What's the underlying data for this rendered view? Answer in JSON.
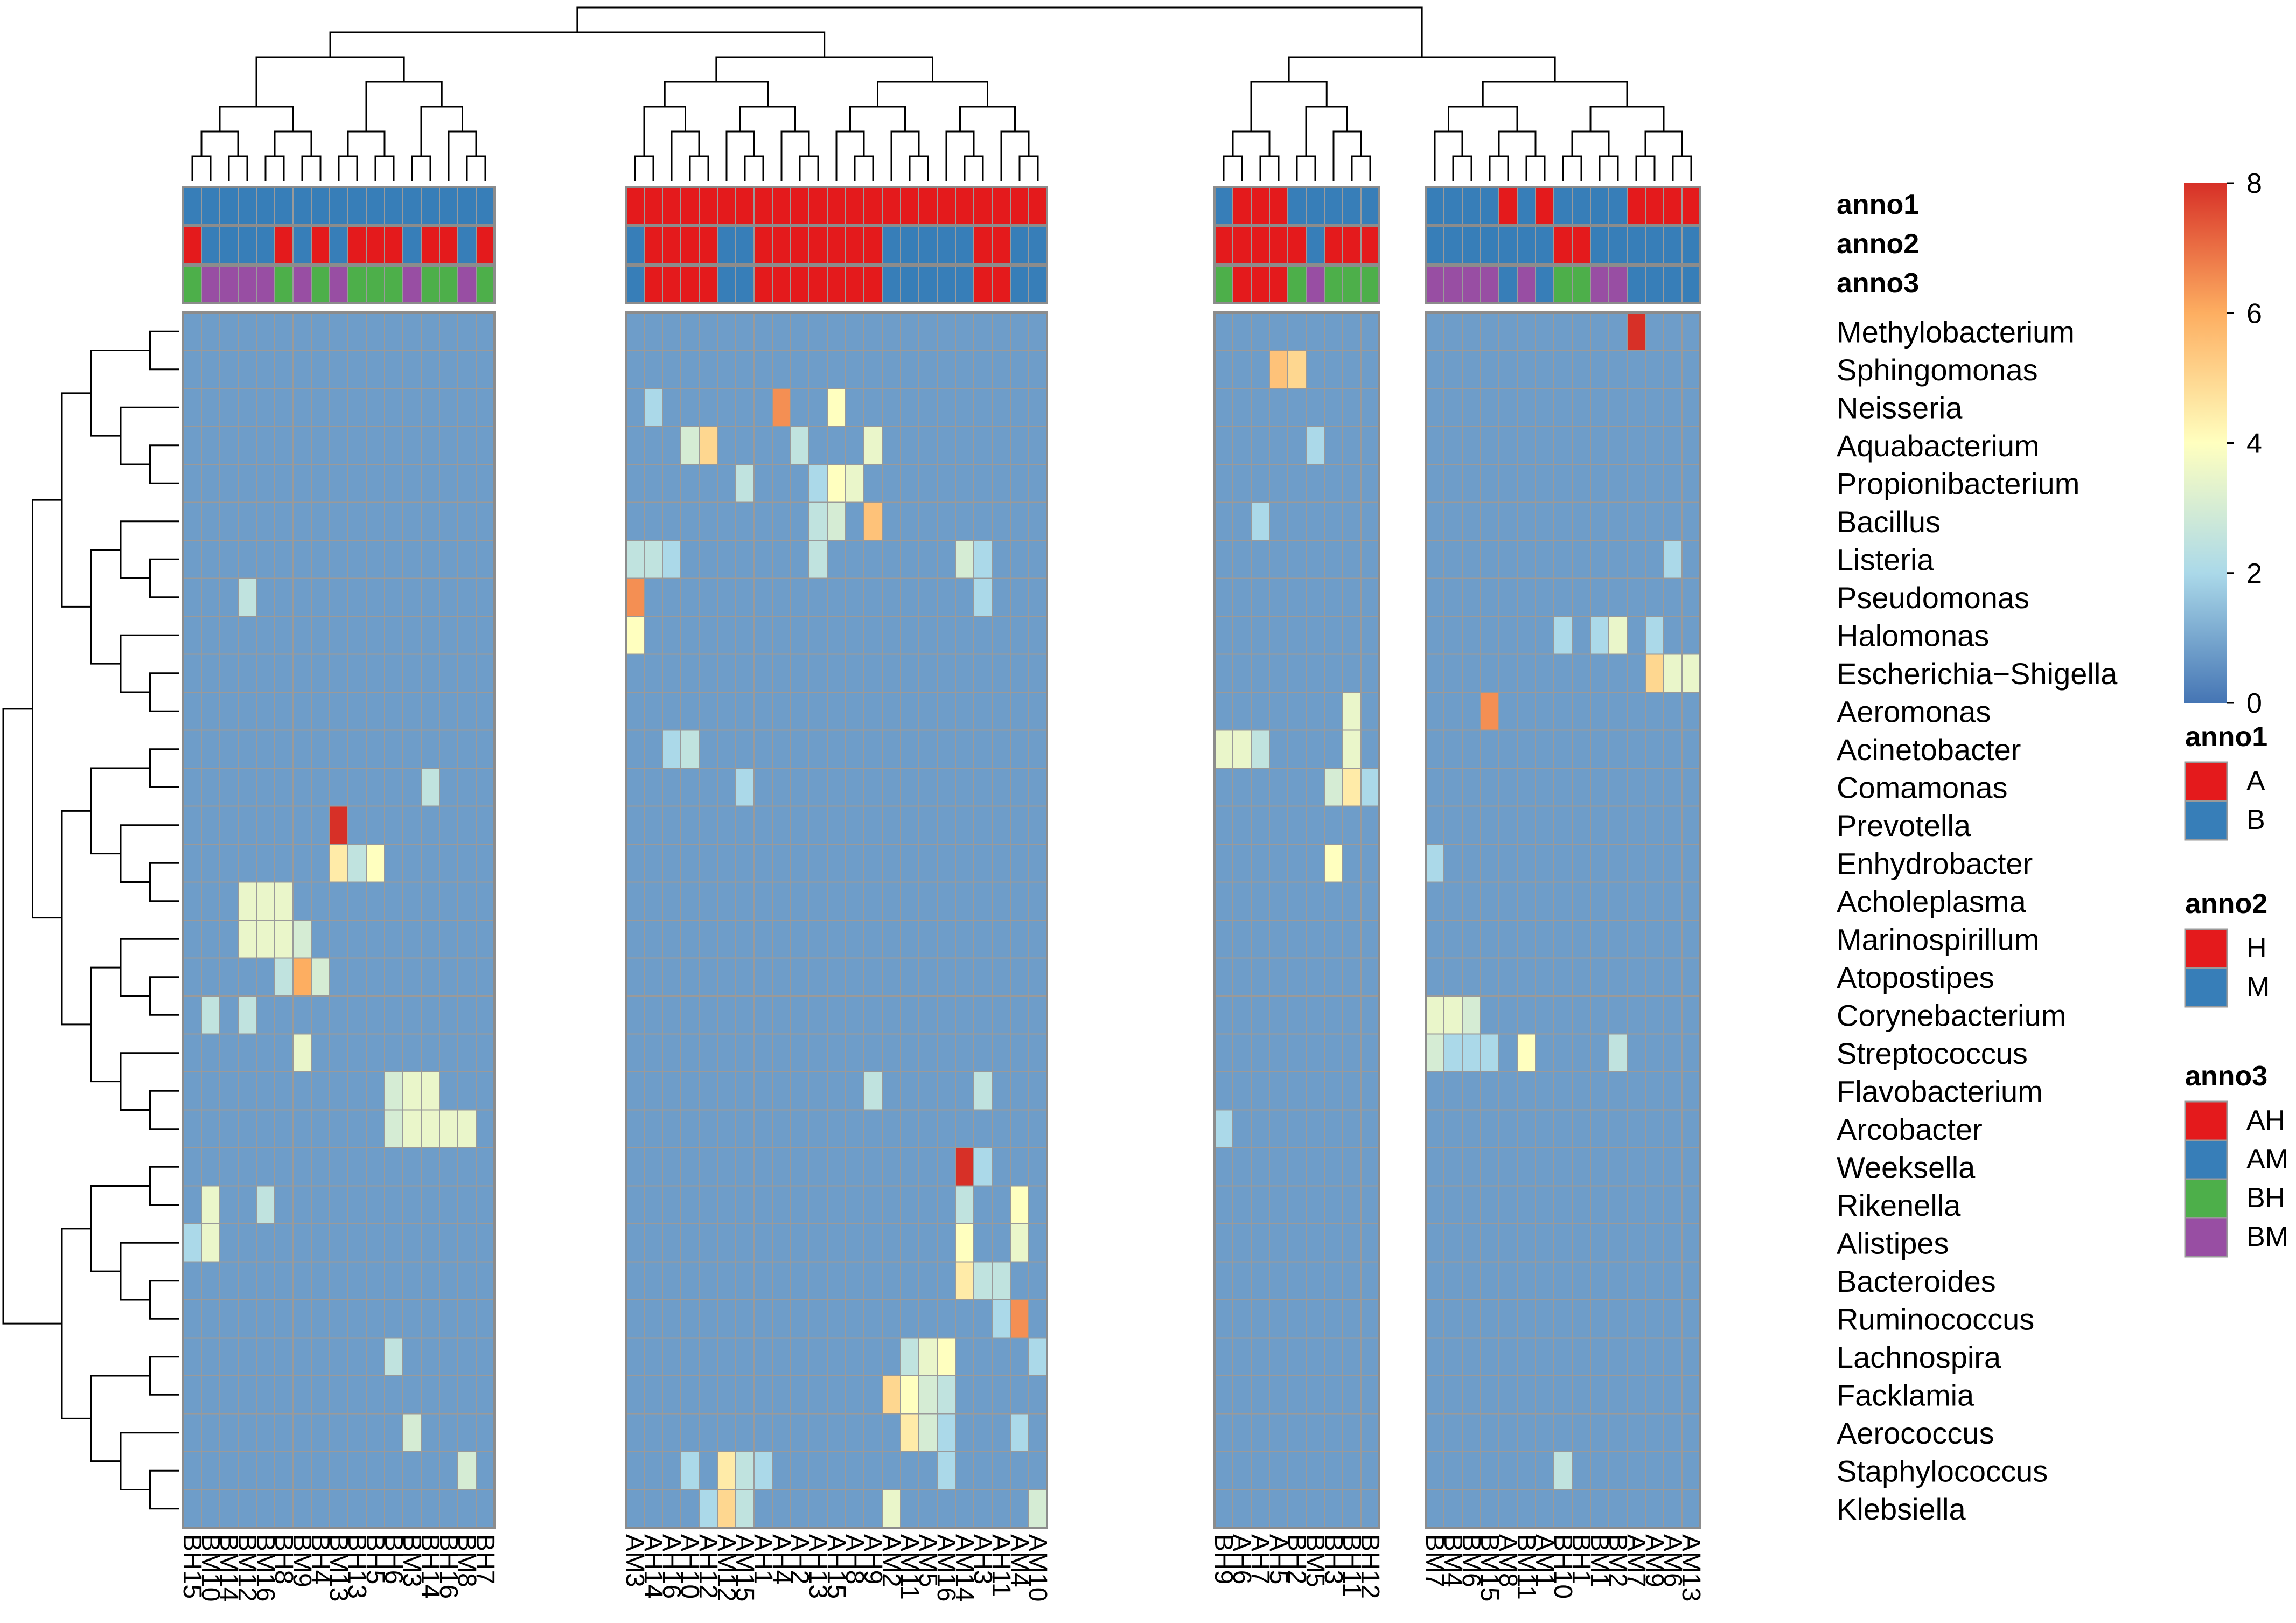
{
  "chart_data": {
    "type": "heatmap",
    "title": "",
    "xlabel": "",
    "ylabel": "",
    "color_scale": {
      "range": [
        0,
        8
      ],
      "ticks": [
        0,
        2,
        4,
        6,
        8
      ],
      "stops": [
        {
          "value": 0,
          "color": "#4575b4"
        },
        {
          "value": 2,
          "color": "#abd9e9"
        },
        {
          "value": 4,
          "color": "#ffffbf"
        },
        {
          "value": 6,
          "color": "#fdae61"
        },
        {
          "value": 8,
          "color": "#d73027"
        }
      ]
    },
    "column_groups": [
      [
        "BH15",
        "BM10",
        "BM14",
        "BM12",
        "BM16",
        "BH8",
        "BM9",
        "BH4",
        "BM13",
        "BH13",
        "BH5",
        "BH6",
        "BM3",
        "BH14",
        "BH16",
        "BM8",
        "BH7"
      ],
      [
        "AM3",
        "AH14",
        "AH16",
        "AH10",
        "AH12",
        "AM12",
        "AM15",
        "AH1",
        "AH4",
        "AH2",
        "AH13",
        "AH15",
        "AH8",
        "AH9",
        "AM2",
        "AM11",
        "AM5",
        "AM16",
        "AM14",
        "AH3",
        "AH11",
        "AM4",
        "AM10"
      ],
      [
        "BH9",
        "AH6",
        "AH7",
        "AH5",
        "BH2",
        "BM5",
        "BH3",
        "BH11",
        "BH12"
      ],
      [
        "BM7",
        "BM4",
        "BM6",
        "BM15",
        "AM8",
        "BM11",
        "AM1",
        "BH10",
        "BH1",
        "BM1",
        "BM2",
        "AM7",
        "AM9",
        "AM6",
        "AM13"
      ]
    ],
    "columns": [
      "BH15",
      "BM10",
      "BM14",
      "BM12",
      "BM16",
      "BH8",
      "BM9",
      "BH4",
      "BM13",
      "BH13",
      "BH5",
      "BH6",
      "BM3",
      "BH14",
      "BH16",
      "BM8",
      "BH7",
      "AM3",
      "AH14",
      "AH16",
      "AH10",
      "AH12",
      "AM12",
      "AM15",
      "AH1",
      "AH4",
      "AH2",
      "AH13",
      "AH15",
      "AH8",
      "AH9",
      "AM2",
      "AM11",
      "AM5",
      "AM16",
      "AM14",
      "AH3",
      "AH11",
      "AM4",
      "AM10",
      "BH9",
      "AH6",
      "AH7",
      "AH5",
      "BH2",
      "BM5",
      "BH3",
      "BH11",
      "BH12",
      "BM7",
      "BM4",
      "BM6",
      "BM15",
      "AM8",
      "BM11",
      "AM1",
      "BH10",
      "BH1",
      "BM1",
      "BM2",
      "AM7",
      "AM9",
      "AM6",
      "AM13"
    ],
    "rows": [
      "Methylobacterium",
      "Sphingomonas",
      "Neisseria",
      "Aquabacterium",
      "Propionibacterium",
      "Bacillus",
      "Listeria",
      "Pseudomonas",
      "Halomonas",
      "Escherichia−Shigella",
      "Aeromonas",
      "Acinetobacter",
      "Comamonas",
      "Prevotella",
      "Enhydrobacter",
      "Acholeplasma",
      "Marinospirillum",
      "Atopostipes",
      "Corynebacterium",
      "Streptococcus",
      "Flavobacterium",
      "Arcobacter",
      "Weeksella",
      "Rikenella",
      "Alistipes",
      "Bacteroides",
      "Ruminococcus",
      "Lachnospira",
      "Facklamia",
      "Aerococcus",
      "Staphylococcus",
      "Klebsiella"
    ],
    "default_value": 0.8,
    "cells": [
      {
        "row": "Methylobacterium",
        "col": "AM7",
        "value": 8
      },
      {
        "row": "Sphingomonas",
        "col": "AH5",
        "value": 5.5
      },
      {
        "row": "Sphingomonas",
        "col": "BH2",
        "value": 5
      },
      {
        "row": "Neisseria",
        "col": "AH4",
        "value": 6.5
      },
      {
        "row": "Neisseria",
        "col": "AH15",
        "value": 4
      },
      {
        "row": "Neisseria",
        "col": "AH14",
        "value": 2
      },
      {
        "row": "Aquabacterium",
        "col": "AH12",
        "value": 5
      },
      {
        "row": "Aquabacterium",
        "col": "AH10",
        "value": 3
      },
      {
        "row": "Aquabacterium",
        "col": "AH2",
        "value": 2.5
      },
      {
        "row": "Aquabacterium",
        "col": "AH9",
        "value": 3.5
      },
      {
        "row": "Aquabacterium",
        "col": "BM5",
        "value": 2
      },
      {
        "row": "Propionibacterium",
        "col": "AH15",
        "value": 4
      },
      {
        "row": "Propionibacterium",
        "col": "AH8",
        "value": 3.5
      },
      {
        "row": "Propionibacterium",
        "col": "AM15",
        "value": 2.5
      },
      {
        "row": "Propionibacterium",
        "col": "AH13",
        "value": 2
      },
      {
        "row": "Bacillus",
        "col": "AH9",
        "value": 5.5
      },
      {
        "row": "Bacillus",
        "col": "AH15",
        "value": 3
      },
      {
        "row": "Bacillus",
        "col": "AH13",
        "value": 2.5
      },
      {
        "row": "Bacillus",
        "col": "AH7",
        "value": 2
      },
      {
        "row": "Listeria",
        "col": "AM3",
        "value": 2.5
      },
      {
        "row": "Listeria",
        "col": "AH14",
        "value": 2.5
      },
      {
        "row": "Listeria",
        "col": "AH16",
        "value": 2
      },
      {
        "row": "Listeria",
        "col": "AH13",
        "value": 2.5
      },
      {
        "row": "Listeria",
        "col": "AM14",
        "value": 3
      },
      {
        "row": "Listeria",
        "col": "AH3",
        "value": 2
      },
      {
        "row": "Listeria",
        "col": "AM6",
        "value": 2
      },
      {
        "row": "Pseudomonas",
        "col": "AM3",
        "value": 6.5
      },
      {
        "row": "Pseudomonas",
        "col": "BM12",
        "value": 2.5
      },
      {
        "row": "Pseudomonas",
        "col": "AH3",
        "value": 2
      },
      {
        "row": "Halomonas",
        "col": "AM3",
        "value": 4
      },
      {
        "row": "Halomonas",
        "col": "BM1",
        "value": 2
      },
      {
        "row": "Halomonas",
        "col": "BM2",
        "value": 3.5
      },
      {
        "row": "Halomonas",
        "col": "BH10",
        "value": 2
      },
      {
        "row": "Halomonas",
        "col": "AM9",
        "value": 2
      },
      {
        "row": "Escherichia−Shigella",
        "col": "AM9",
        "value": 5
      },
      {
        "row": "Escherichia−Shigella",
        "col": "AM6",
        "value": 3.5
      },
      {
        "row": "Escherichia−Shigella",
        "col": "AM13",
        "value": 3.5
      },
      {
        "row": "Aeromonas",
        "col": "BM15",
        "value": 6.5
      },
      {
        "row": "Aeromonas",
        "col": "BH11",
        "value": 3.5
      },
      {
        "row": "Acinetobacter",
        "col": "BH9",
        "value": 3.5
      },
      {
        "row": "Acinetobacter",
        "col": "AH6",
        "value": 3.5
      },
      {
        "row": "Acinetobacter",
        "col": "AH7",
        "value": 2.5
      },
      {
        "row": "Acinetobacter",
        "col": "BH11",
        "value": 3.5
      },
      {
        "row": "Acinetobacter",
        "col": "AH16",
        "value": 2
      },
      {
        "row": "Acinetobacter",
        "col": "AH10",
        "value": 2.5
      },
      {
        "row": "Comamonas",
        "col": "BH11",
        "value": 4.5
      },
      {
        "row": "Comamonas",
        "col": "BH3",
        "value": 3
      },
      {
        "row": "Comamonas",
        "col": "BH12",
        "value": 2
      },
      {
        "row": "Comamonas",
        "col": "BH14",
        "value": 2.5
      },
      {
        "row": "Comamonas",
        "col": "AM15",
        "value": 2
      },
      {
        "row": "Prevotella",
        "col": "BM13",
        "value": 8
      },
      {
        "row": "Enhydrobacter",
        "col": "BM13",
        "value": 4.5
      },
      {
        "row": "Enhydrobacter",
        "col": "BH13",
        "value": 2.5
      },
      {
        "row": "Enhydrobacter",
        "col": "BH5",
        "value": 4
      },
      {
        "row": "Enhydrobacter",
        "col": "BH3",
        "value": 4
      },
      {
        "row": "Enhydrobacter",
        "col": "BM7",
        "value": 2
      },
      {
        "row": "Acholeplasma",
        "col": "BM12",
        "value": 3.5
      },
      {
        "row": "Acholeplasma",
        "col": "BM16",
        "value": 3.5
      },
      {
        "row": "Acholeplasma",
        "col": "BH8",
        "value": 3.5
      },
      {
        "row": "Marinospirillum",
        "col": "BM12",
        "value": 3.5
      },
      {
        "row": "Marinospirillum",
        "col": "BM16",
        "value": 3.5
      },
      {
        "row": "Marinospirillum",
        "col": "BH8",
        "value": 3.5
      },
      {
        "row": "Marinospirillum",
        "col": "BM9",
        "value": 3
      },
      {
        "row": "Atopostipes",
        "col": "BM9",
        "value": 6
      },
      {
        "row": "Atopostipes",
        "col": "BH4",
        "value": 3
      },
      {
        "row": "Atopostipes",
        "col": "BH8",
        "value": 2.5
      },
      {
        "row": "Corynebacterium",
        "col": "BM7",
        "value": 3.5
      },
      {
        "row": "Corynebacterium",
        "col": "BM4",
        "value": 3.5
      },
      {
        "row": "Corynebacterium",
        "col": "BM6",
        "value": 3
      },
      {
        "row": "Corynebacterium",
        "col": "BM10",
        "value": 2.5
      },
      {
        "row": "Corynebacterium",
        "col": "BM12",
        "value": 2.5
      },
      {
        "row": "Streptococcus",
        "col": "BM9",
        "value": 3.5
      },
      {
        "row": "Streptococcus",
        "col": "BM7",
        "value": 3
      },
      {
        "row": "Streptococcus",
        "col": "BM11",
        "value": 4
      },
      {
        "row": "Streptococcus",
        "col": "BM4",
        "value": 2
      },
      {
        "row": "Streptococcus",
        "col": "BM6",
        "value": 2
      },
      {
        "row": "Streptococcus",
        "col": "BM15",
        "value": 2
      },
      {
        "row": "Streptococcus",
        "col": "BM2",
        "value": 2.5
      },
      {
        "row": "Flavobacterium",
        "col": "BH6",
        "value": 3
      },
      {
        "row": "Flavobacterium",
        "col": "BM3",
        "value": 3.5
      },
      {
        "row": "Flavobacterium",
        "col": "BH14",
        "value": 3.5
      },
      {
        "row": "Flavobacterium",
        "col": "AH9",
        "value": 2.5
      },
      {
        "row": "Flavobacterium",
        "col": "AH3",
        "value": 2.5
      },
      {
        "row": "Arcobacter",
        "col": "BH6",
        "value": 3
      },
      {
        "row": "Arcobacter",
        "col": "BM3",
        "value": 3.5
      },
      {
        "row": "Arcobacter",
        "col": "BH14",
        "value": 3.5
      },
      {
        "row": "Arcobacter",
        "col": "BH16",
        "value": 3.5
      },
      {
        "row": "Arcobacter",
        "col": "BM8",
        "value": 3.5
      },
      {
        "row": "Arcobacter",
        "col": "BH9",
        "value": 2
      },
      {
        "row": "Weeksella",
        "col": "AM14",
        "value": 8
      },
      {
        "row": "Weeksella",
        "col": "AH3",
        "value": 2
      },
      {
        "row": "Rikenella",
        "col": "BM10",
        "value": 3.5
      },
      {
        "row": "Rikenella",
        "col": "BM16",
        "value": 2.5
      },
      {
        "row": "Rikenella",
        "col": "AM4",
        "value": 4
      },
      {
        "row": "Rikenella",
        "col": "AM14",
        "value": 2.5
      },
      {
        "row": "Alistipes",
        "col": "BH15",
        "value": 2
      },
      {
        "row": "Alistipes",
        "col": "BM10",
        "value": 3.5
      },
      {
        "row": "Alistipes",
        "col": "AM14",
        "value": 4
      },
      {
        "row": "Alistipes",
        "col": "AM4",
        "value": 3.5
      },
      {
        "row": "Bacteroides",
        "col": "AM14",
        "value": 4.5
      },
      {
        "row": "Bacteroides",
        "col": "AH3",
        "value": 2.5
      },
      {
        "row": "Bacteroides",
        "col": "AH11",
        "value": 2.5
      },
      {
        "row": "Ruminococcus",
        "col": "AM4",
        "value": 6.5
      },
      {
        "row": "Ruminococcus",
        "col": "AH11",
        "value": 2
      },
      {
        "row": "Lachnospira",
        "col": "AM16",
        "value": 4
      },
      {
        "row": "Lachnospira",
        "col": "AM5",
        "value": 3.5
      },
      {
        "row": "Lachnospira",
        "col": "AM11",
        "value": 2.5
      },
      {
        "row": "Lachnospira",
        "col": "BH6",
        "value": 2.5
      },
      {
        "row": "Lachnospira",
        "col": "AM10",
        "value": 2
      },
      {
        "row": "Facklamia",
        "col": "AM2",
        "value": 5
      },
      {
        "row": "Facklamia",
        "col": "AM11",
        "value": 4
      },
      {
        "row": "Facklamia",
        "col": "AM5",
        "value": 3
      },
      {
        "row": "Facklamia",
        "col": "AM16",
        "value": 2.5
      },
      {
        "row": "Aerococcus",
        "col": "AM11",
        "value": 4.5
      },
      {
        "row": "Aerococcus",
        "col": "AM5",
        "value": 3
      },
      {
        "row": "Aerococcus",
        "col": "BM3",
        "value": 3
      },
      {
        "row": "Aerococcus",
        "col": "AM16",
        "value": 2
      },
      {
        "row": "Aerococcus",
        "col": "AM4",
        "value": 2
      },
      {
        "row": "Staphylococcus",
        "col": "AM12",
        "value": 4.5
      },
      {
        "row": "Staphylococcus",
        "col": "AM15",
        "value": 2.5
      },
      {
        "row": "Staphylococcus",
        "col": "AH10",
        "value": 2
      },
      {
        "row": "Staphylococcus",
        "col": "AH1",
        "value": 2
      },
      {
        "row": "Staphylococcus",
        "col": "BM8",
        "value": 3
      },
      {
        "row": "Staphylococcus",
        "col": "AM16",
        "value": 2
      },
      {
        "row": "Staphylococcus",
        "col": "BH10",
        "value": 2.5
      },
      {
        "row": "Klebsiella",
        "col": "AM12",
        "value": 5
      },
      {
        "row": "Klebsiella",
        "col": "AM2",
        "value": 3.5
      },
      {
        "row": "Klebsiella",
        "col": "AM15",
        "value": 2.5
      },
      {
        "row": "Klebsiella",
        "col": "AM10",
        "value": 3
      },
      {
        "row": "Klebsiella",
        "col": "AH12",
        "value": 2
      }
    ],
    "annotations": {
      "rows": [
        "anno1",
        "anno2",
        "anno3"
      ],
      "legends": [
        {
          "name": "anno1",
          "entries": [
            {
              "label": "A",
              "color": "#e41a1c"
            },
            {
              "label": "B",
              "color": "#377eb8"
            }
          ]
        },
        {
          "name": "anno2",
          "entries": [
            {
              "label": "H",
              "color": "#e41a1c"
            },
            {
              "label": "M",
              "color": "#377eb8"
            }
          ]
        },
        {
          "name": "anno3",
          "entries": [
            {
              "label": "AH",
              "color": "#e41a1c"
            },
            {
              "label": "AM",
              "color": "#377eb8"
            },
            {
              "label": "BH",
              "color": "#4daf4a"
            },
            {
              "label": "BM",
              "color": "#984ea3"
            }
          ]
        }
      ]
    },
    "column_dendrogram": {
      "leaves": 64,
      "top_splits": [
        [
          17,
          23,
          9,
          15
        ]
      ]
    },
    "row_dendrogram": {
      "leaves": 32,
      "top_splits": [
        [
          22,
          10
        ]
      ]
    },
    "legend_position": "right"
  }
}
